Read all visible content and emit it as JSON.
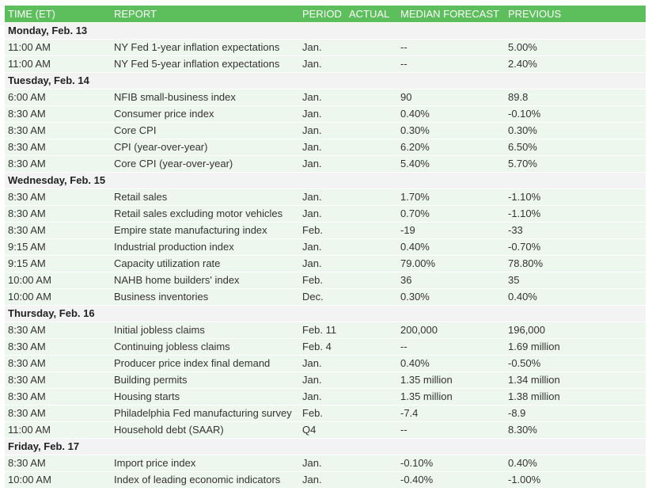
{
  "header": {
    "time": "TIME (ET)",
    "report": "REPORT",
    "period": "PERIOD",
    "actual": "ACTUAL",
    "median": "MEDIAN FORECAST",
    "previous": "PREVIOUS"
  },
  "days": [
    {
      "label": "Monday, Feb. 13",
      "rows": [
        {
          "time": "11:00 AM",
          "report": "NY Fed 1-year inflation expectations",
          "period": "Jan.",
          "median": "--",
          "previous": "5.00%"
        },
        {
          "time": "11:00 AM",
          "report": "NY Fed 5-year inflation expectations",
          "period": "Jan.",
          "median": "--",
          "previous": "2.40%"
        }
      ]
    },
    {
      "label": "Tuesday, Feb. 14",
      "rows": [
        {
          "time": "6:00 AM",
          "report": "NFIB small-business index",
          "period": "Jan.",
          "median": "90",
          "previous": "89.8"
        },
        {
          "time": "8:30 AM",
          "report": "Consumer price index",
          "period": "Jan.",
          "median": "0.40%",
          "previous": "-0.10%"
        },
        {
          "time": "8:30 AM",
          "report": "Core CPI",
          "period": "Jan.",
          "median": "0.30%",
          "previous": "0.30%"
        },
        {
          "time": "8:30 AM",
          "report": "CPI (year-over-year)",
          "period": "Jan.",
          "median": "6.20%",
          "previous": "6.50%"
        },
        {
          "time": "8:30 AM",
          "report": "Core CPI (year-over-year)",
          "period": "Jan.",
          "median": "5.40%",
          "previous": "5.70%"
        }
      ]
    },
    {
      "label": "Wednesday, Feb. 15",
      "rows": [
        {
          "time": "8:30 AM",
          "report": "Retail sales",
          "period": "Jan.",
          "median": "1.70%",
          "previous": "-1.10%"
        },
        {
          "time": "8:30 AM",
          "report": "Retail sales excluding motor vehicles",
          "period": "Jan.",
          "median": "0.70%",
          "previous": "-1.10%"
        },
        {
          "time": "8:30 AM",
          "report": "Empire state manufacturing index",
          "period": "Feb.",
          "median": "-19",
          "previous": "-33"
        },
        {
          "time": "9:15 AM",
          "report": "Industrial production index",
          "period": "Jan.",
          "median": "0.40%",
          "previous": "-0.70%"
        },
        {
          "time": "9:15 AM",
          "report": "Capacity utilization rate",
          "period": "Jan.",
          "median": "79.00%",
          "previous": "78.80%"
        },
        {
          "time": "10:00 AM",
          "report": "NAHB home builders' index",
          "period": "Feb.",
          "median": "36",
          "previous": "35"
        },
        {
          "time": "10:00 AM",
          "report": "Business inventories",
          "period": "Dec.",
          "median": "0.30%",
          "previous": "0.40%"
        }
      ]
    },
    {
      "label": "Thursday, Feb. 16",
      "rows": [
        {
          "time": "8:30 AM",
          "report": "Initial jobless claims",
          "period": "Feb. 11",
          "median": "200,000",
          "previous": "196,000"
        },
        {
          "time": "8:30 AM",
          "report": "Continuing jobless claims",
          "period": "Feb. 4",
          "median": "--",
          "previous": "1.69 million"
        },
        {
          "time": "8:30 AM",
          "report": "Producer price index final demand",
          "period": "Jan.",
          "median": "0.40%",
          "previous": "-0.50%"
        },
        {
          "time": "8:30 AM",
          "report": "Building permits",
          "period": "Jan.",
          "median": "1.35 million",
          "previous": "1.34 million"
        },
        {
          "time": "8:30 AM",
          "report": "Housing starts",
          "period": "Jan.",
          "median": "1.35 million",
          "previous": "1.38 million"
        },
        {
          "time": "8:30 AM",
          "report": "Philadelphia Fed manufacturing survey",
          "period": "Feb.",
          "median": "-7.4",
          "previous": "-8.9"
        },
        {
          "time": "11:00 AM",
          "report": "Household debt (SAAR)",
          "period": "Q4",
          "median": "--",
          "previous": "8.30%"
        }
      ]
    },
    {
      "label": "Friday, Feb. 17",
      "rows": [
        {
          "time": "8:30 AM",
          "report": "Import price index",
          "period": "Jan.",
          "median": "-0.10%",
          "previous": "0.40%"
        },
        {
          "time": "10:00 AM",
          "report": "Index of leading economic indicators",
          "period": "Jan.",
          "median": "-0.40%",
          "previous": "-1.00%"
        }
      ]
    }
  ]
}
